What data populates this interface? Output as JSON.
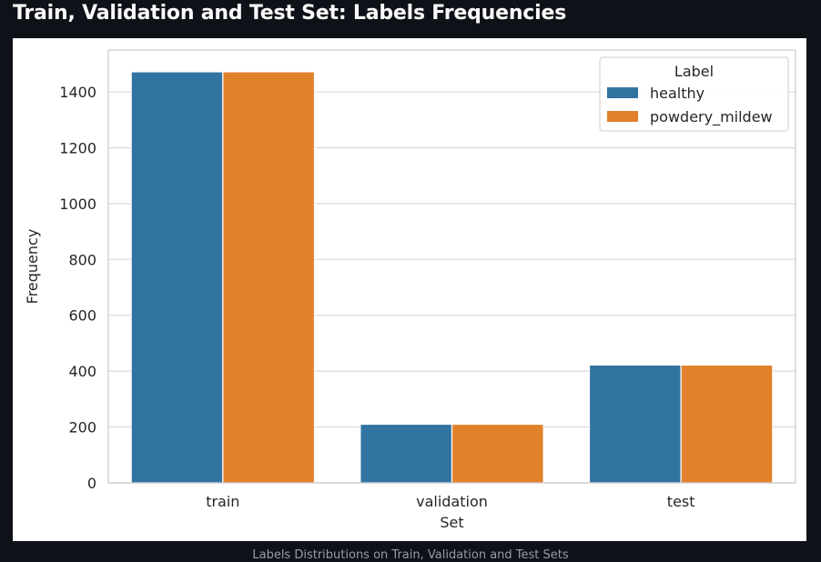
{
  "page": {
    "title": "Train, Validation and Test Set: Labels Frequencies",
    "caption": "Labels Distributions on Train, Validation and Test Sets"
  },
  "colors": {
    "page_background": "#0e1117",
    "figure_background": "#ffffff",
    "series_healthy": "#3274a1",
    "series_powdery_mildew": "#e1812c",
    "gridline": "#d9d9d9",
    "axis_frame": "#cccccc",
    "text": "#262626"
  },
  "chart_data": {
    "type": "bar",
    "title": "",
    "xlabel": "Set",
    "ylabel": "Frequency",
    "categories": [
      "train",
      "validation",
      "test"
    ],
    "series": [
      {
        "name": "healthy",
        "values": [
          1472,
          210,
          422
        ]
      },
      {
        "name": "powdery_mildew",
        "values": [
          1472,
          210,
          422
        ]
      }
    ],
    "ylim": [
      0,
      1550
    ],
    "yticks": [
      0,
      200,
      400,
      600,
      800,
      1000,
      1200,
      1400
    ],
    "grid": true,
    "legend": {
      "title": "Label",
      "placement": "top-right"
    }
  }
}
